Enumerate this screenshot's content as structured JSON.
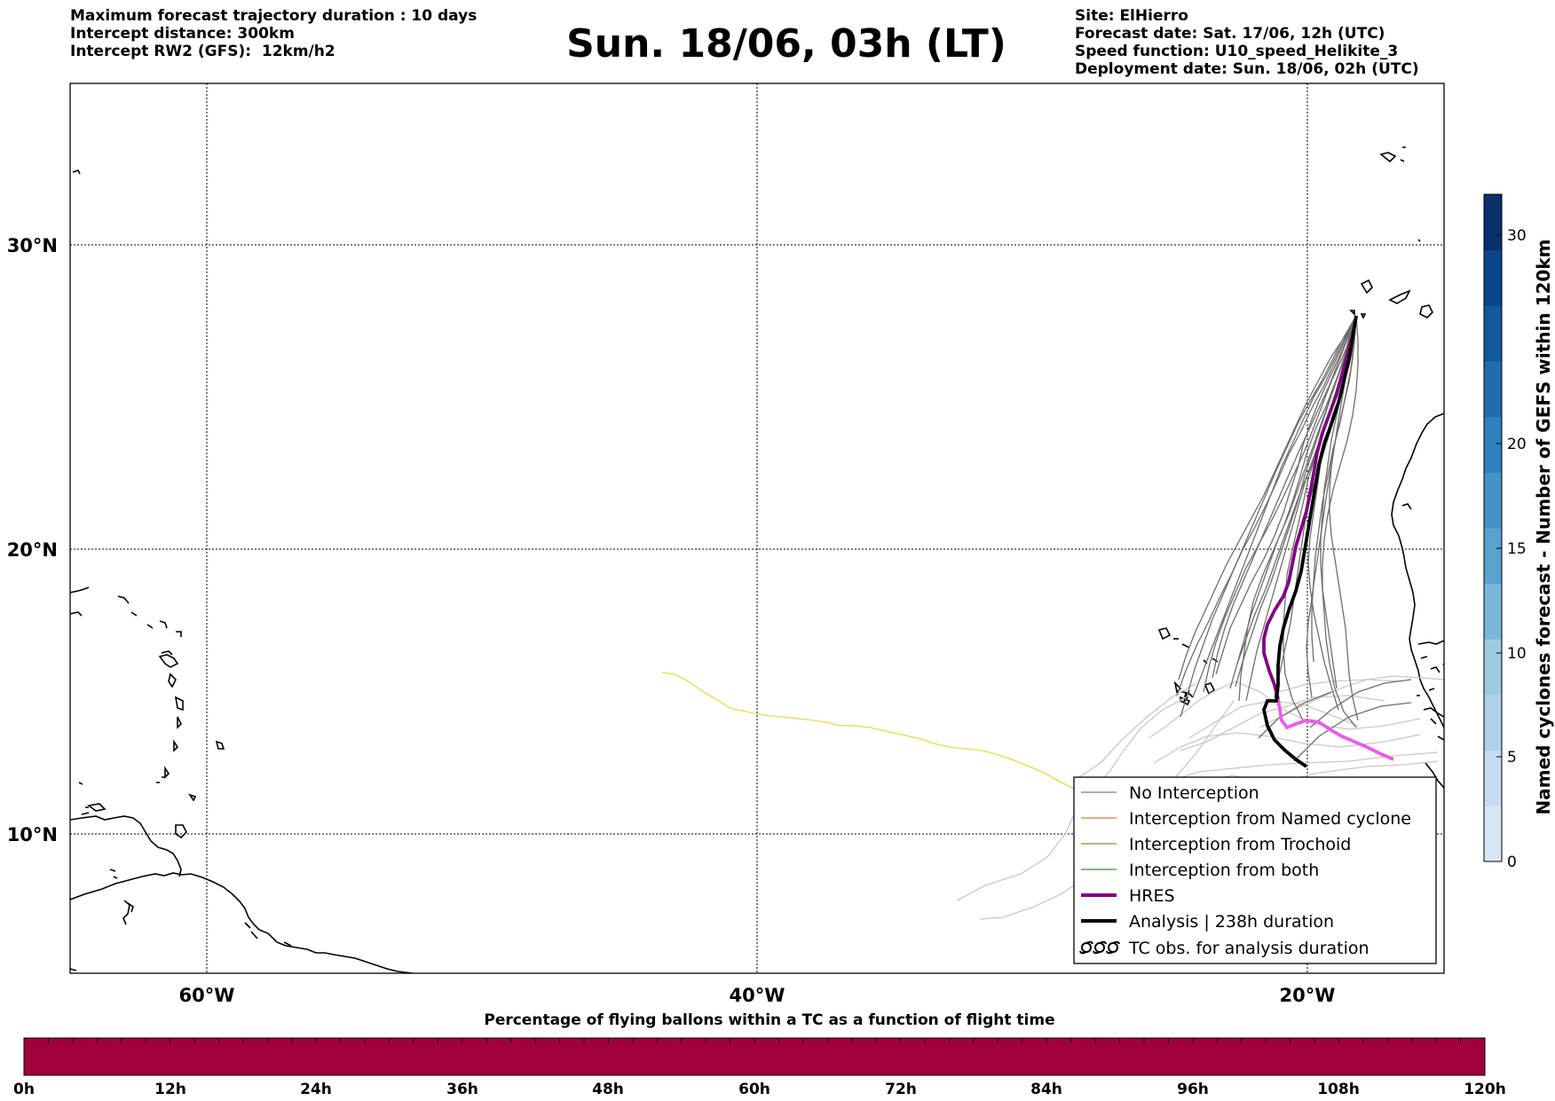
{
  "header": {
    "left_lines": [
      "Maximum forecast trajectory duration : 10 days",
      "Intercept distance: 300km",
      "Intercept RW2 (GFS):  12km/h2"
    ],
    "title": "Sun. 18/06, 03h (LT)",
    "right_lines": [
      "Site: ElHierro",
      "Forecast date: Sat. 17/06, 12h (UTC)",
      "Speed function: U10_speed_Helikite_3",
      "Deployment date: Sun. 18/06, 02h (UTC)"
    ]
  },
  "map": {
    "lon_ticks": [
      "60°W",
      "40°W",
      "20°W"
    ],
    "lat_ticks": [
      "30°N",
      "20°N",
      "10°N"
    ]
  },
  "legend": {
    "items": [
      {
        "label": "No Interception",
        "color": "#7a7a7a",
        "style": "thin"
      },
      {
        "label": "Interception from Named cyclone",
        "color": "#e8743b",
        "style": "thin"
      },
      {
        "label": "Interception from Trochoid",
        "color": "#8a8a3a",
        "style": "thin"
      },
      {
        "label": "Interception from both",
        "color": "#3a8a3a",
        "style": "thin"
      },
      {
        "label": "HRES",
        "color": "#800080",
        "style": "thick"
      },
      {
        "label": "Analysis | 238h duration",
        "color": "#000000",
        "style": "thick"
      },
      {
        "label": "TC obs. for analysis duration",
        "color": "#000000",
        "style": "symbol"
      }
    ]
  },
  "colorbar_right": {
    "label": "Named cyclones forecast - Number of GEFS within 120km",
    "ticks": [
      "0",
      "5",
      "10",
      "15",
      "20",
      "30"
    ],
    "colors": [
      "#d8e6f3",
      "#c6dbef",
      "#b0cfe8",
      "#9ecae1",
      "#7ab7db",
      "#5aa2d0",
      "#4592c6",
      "#3080bd",
      "#1f6dae",
      "#11589c",
      "#08468a",
      "#08306b"
    ]
  },
  "colorbar_bottom": {
    "label": "Percentage of flying ballons within a TC as a function of flight time",
    "ticks": [
      "0h",
      "12h",
      "24h",
      "36h",
      "48h",
      "60h",
      "72h",
      "84h",
      "96h",
      "108h",
      "120h"
    ],
    "fill_color": "#a0003c"
  },
  "colors": {
    "no_interception": "#7a7a7a",
    "hres": "#800080",
    "hres_light": "#e85ee8",
    "analysis": "#000000",
    "yellow_track": "#e6e065",
    "light_tracks": "#c8c8c8"
  }
}
